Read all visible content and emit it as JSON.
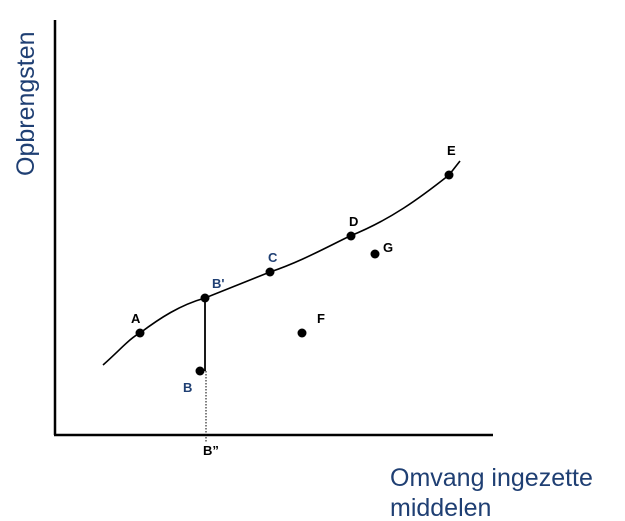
{
  "axes": {
    "y_title": "Opbrengsten",
    "x_title_line1": "Omvang ingezette",
    "x_title_line2": "middelen"
  },
  "points": [
    {
      "id": "A",
      "label": "A"
    },
    {
      "id": "B_prime",
      "label": "B'"
    },
    {
      "id": "C",
      "label": "C"
    },
    {
      "id": "D",
      "label": "D"
    },
    {
      "id": "E",
      "label": "E"
    },
    {
      "id": "B",
      "label": "B"
    },
    {
      "id": "F",
      "label": "F"
    },
    {
      "id": "G",
      "label": "G"
    }
  ],
  "x_marker": {
    "label": "B”"
  },
  "colors": {
    "axis_title": "#1f3f73",
    "label_blue": "#1f3f73",
    "label_black": "#000000",
    "line": "#000000"
  }
}
